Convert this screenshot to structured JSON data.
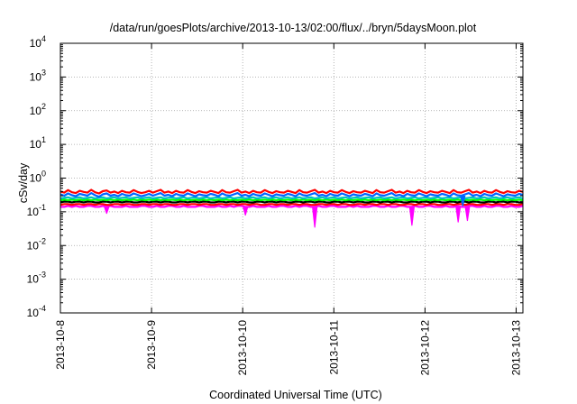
{
  "chart_data": {
    "type": "line",
    "title": "/data/run/goesPlots/archive/2013-10-13/02:00/flux/../bryn/5daysMoon.plot",
    "xlabel": "Coordinated Universal Time (UTC)",
    "ylabel": "cSv/day",
    "yscale": "log",
    "ylim": [
      0.0001,
      10000
    ],
    "yticks": [
      {
        "base": "10",
        "exp": "-4"
      },
      {
        "base": "10",
        "exp": "-3"
      },
      {
        "base": "10",
        "exp": "-2"
      },
      {
        "base": "10",
        "exp": "-1"
      },
      {
        "base": "10",
        "exp": "0"
      },
      {
        "base": "10",
        "exp": "1"
      },
      {
        "base": "10",
        "exp": "2"
      },
      {
        "base": "10",
        "exp": "3"
      },
      {
        "base": "10",
        "exp": "4"
      }
    ],
    "xlim": [
      "2013-10-08",
      "2013-10-13 02:00"
    ],
    "xticks": [
      "2013-10-8",
      "2013-10-9",
      "2013-10-10",
      "2013-10-11",
      "2013-10-12",
      "2013-10-13"
    ],
    "grid": true,
    "series": [
      {
        "color": "#ff00ff",
        "values": [
          0.14,
          0.14,
          0.15,
          0.14,
          0.15,
          0.14,
          0.14,
          0.15,
          0.15,
          0.14,
          0.14,
          0.15,
          0.14,
          0.15,
          0.14,
          0.14,
          0.14,
          0.15,
          0.14,
          0.14,
          0.14,
          0.15,
          0.15,
          0.14,
          0.14,
          0.15,
          0.14,
          0.14,
          0.15,
          0.15,
          0.14,
          0.14,
          0.15,
          0.14,
          0.14,
          0.14,
          0.15,
          0.15,
          0.14,
          0.14,
          0.14,
          0.15,
          0.14,
          0.14,
          0.15,
          0.14,
          0.15,
          0.15,
          0.14,
          0.14,
          0.15,
          0.14,
          0.14,
          0.14,
          0.15,
          0.14,
          0.14,
          0.15,
          0.15,
          0.14,
          0.14,
          0.15,
          0.14,
          0.15,
          0.15,
          0.14,
          0.14,
          0.15,
          0.14,
          0.14,
          0.15,
          0.15,
          0.14,
          0.14,
          0.14,
          0.15,
          0.14,
          0.15,
          0.14,
          0.14,
          0.14,
          0.15,
          0.15,
          0.14,
          0.14,
          0.15,
          0.14,
          0.14,
          0.15,
          0.15,
          0.14,
          0.14,
          0.15,
          0.14,
          0.14,
          0.15,
          0.15,
          0.14,
          0.14,
          0.14,
          0.15,
          0.14,
          0.14,
          0.15,
          0.14,
          0.14,
          0.15,
          0.15,
          0.14,
          0.14,
          0.15,
          0.14,
          0.14,
          0.15,
          0.15,
          0.14,
          0.14,
          0.15,
          0.14,
          0.14,
          0.15
        ]
      },
      {
        "color": "#ff0000",
        "values": [
          0.16,
          0.17,
          0.17,
          0.16,
          0.17,
          0.17,
          0.16,
          0.17,
          0.17,
          0.16,
          0.17,
          0.17,
          0.16,
          0.16,
          0.17,
          0.17,
          0.16,
          0.17,
          0.17,
          0.16,
          0.16,
          0.17,
          0.17,
          0.16,
          0.17,
          0.17,
          0.16,
          0.17,
          0.17,
          0.16,
          0.16,
          0.17,
          0.17,
          0.16,
          0.17,
          0.17,
          0.16,
          0.17,
          0.17,
          0.16,
          0.16,
          0.17,
          0.17,
          0.16,
          0.17,
          0.17,
          0.16,
          0.17,
          0.17,
          0.16,
          0.17,
          0.17,
          0.16,
          0.16,
          0.17,
          0.17,
          0.16,
          0.17,
          0.17,
          0.16,
          0.17,
          0.17,
          0.16,
          0.17,
          0.17,
          0.16,
          0.16,
          0.17,
          0.17,
          0.16,
          0.17,
          0.17,
          0.16,
          0.17,
          0.17,
          0.16,
          0.16,
          0.17,
          0.17,
          0.16,
          0.17,
          0.17,
          0.16,
          0.17,
          0.17,
          0.16,
          0.17,
          0.17,
          0.16,
          0.16,
          0.17,
          0.17,
          0.16,
          0.17,
          0.17,
          0.16,
          0.17,
          0.17,
          0.16,
          0.16,
          0.17,
          0.17,
          0.16,
          0.17,
          0.17,
          0.16,
          0.17,
          0.17,
          0.16,
          0.16,
          0.17,
          0.17,
          0.16,
          0.17,
          0.17,
          0.16,
          0.17,
          0.17,
          0.16,
          0.16,
          0.17
        ]
      },
      {
        "color": "#000000",
        "values": [
          0.19,
          0.2,
          0.2,
          0.19,
          0.2,
          0.2,
          0.19,
          0.2,
          0.2,
          0.19,
          0.19,
          0.2,
          0.2,
          0.19,
          0.2,
          0.2,
          0.19,
          0.2,
          0.2,
          0.19,
          0.19,
          0.2,
          0.2,
          0.19,
          0.2,
          0.2,
          0.19,
          0.2,
          0.2,
          0.19,
          0.19,
          0.2,
          0.2,
          0.19,
          0.2,
          0.2,
          0.19,
          0.2,
          0.2,
          0.19,
          0.19,
          0.2,
          0.2,
          0.19,
          0.2,
          0.2,
          0.19,
          0.2,
          0.2,
          0.19,
          0.19,
          0.2,
          0.2,
          0.19,
          0.2,
          0.2,
          0.19,
          0.2,
          0.2,
          0.19,
          0.19,
          0.2,
          0.2,
          0.19,
          0.2,
          0.2,
          0.19,
          0.2,
          0.2,
          0.19,
          0.19,
          0.2,
          0.2,
          0.19,
          0.2,
          0.2,
          0.19,
          0.2,
          0.2,
          0.19,
          0.19,
          0.2,
          0.2,
          0.19,
          0.2,
          0.2,
          0.19,
          0.2,
          0.2,
          0.19,
          0.19,
          0.2,
          0.2,
          0.19,
          0.2,
          0.2,
          0.19,
          0.2,
          0.2,
          0.19,
          0.19,
          0.2,
          0.2,
          0.19,
          0.2,
          0.2,
          0.19,
          0.2,
          0.2,
          0.19,
          0.19,
          0.2,
          0.2,
          0.19,
          0.2,
          0.2,
          0.19,
          0.2,
          0.2,
          0.19,
          0.19
        ]
      },
      {
        "color": "#00ff00",
        "values": [
          0.22,
          0.23,
          0.22,
          0.23,
          0.22,
          0.23,
          0.22,
          0.23,
          0.22,
          0.23,
          0.22,
          0.23,
          0.22,
          0.23,
          0.22,
          0.23,
          0.22,
          0.23,
          0.22,
          0.23,
          0.22,
          0.23,
          0.22,
          0.23,
          0.22,
          0.23,
          0.22,
          0.23,
          0.22,
          0.23,
          0.22,
          0.23,
          0.22,
          0.23,
          0.22,
          0.23,
          0.22,
          0.23,
          0.22,
          0.23,
          0.22,
          0.23,
          0.22,
          0.23,
          0.22,
          0.23,
          0.22,
          0.23,
          0.22,
          0.23,
          0.22,
          0.23,
          0.22,
          0.23,
          0.22,
          0.23,
          0.22,
          0.23,
          0.22,
          0.23,
          0.22,
          0.23,
          0.22,
          0.23,
          0.22,
          0.23,
          0.22,
          0.23,
          0.22,
          0.23,
          0.22,
          0.23,
          0.22,
          0.23,
          0.22,
          0.23,
          0.22,
          0.23,
          0.22,
          0.23,
          0.22,
          0.23,
          0.22,
          0.23,
          0.22,
          0.23,
          0.22,
          0.23,
          0.22,
          0.23,
          0.22,
          0.23,
          0.22,
          0.23,
          0.22,
          0.23,
          0.22,
          0.23,
          0.22,
          0.23,
          0.22,
          0.23,
          0.22,
          0.23,
          0.22,
          0.23,
          0.22,
          0.23,
          0.22,
          0.23,
          0.22,
          0.23,
          0.22,
          0.23,
          0.22,
          0.23,
          0.22,
          0.23,
          0.22,
          0.23,
          0.22
        ]
      },
      {
        "color": "#00c0c0",
        "values": [
          0.25,
          0.26,
          0.27,
          0.25,
          0.26,
          0.27,
          0.25,
          0.26,
          0.27,
          0.25,
          0.26,
          0.27,
          0.25,
          0.26,
          0.27,
          0.25,
          0.26,
          0.27,
          0.25,
          0.26,
          0.27,
          0.25,
          0.26,
          0.27,
          0.25,
          0.26,
          0.27,
          0.25,
          0.26,
          0.27,
          0.25,
          0.26,
          0.27,
          0.25,
          0.26,
          0.27,
          0.25,
          0.26,
          0.27,
          0.25,
          0.26,
          0.27,
          0.25,
          0.26,
          0.27,
          0.25,
          0.26,
          0.27,
          0.25,
          0.26,
          0.27,
          0.25,
          0.26,
          0.27,
          0.25,
          0.26,
          0.27,
          0.25,
          0.26,
          0.27,
          0.25,
          0.26,
          0.27,
          0.25,
          0.26,
          0.27,
          0.25,
          0.26,
          0.27,
          0.25,
          0.26,
          0.27,
          0.25,
          0.26,
          0.27,
          0.25,
          0.26,
          0.27,
          0.25,
          0.26,
          0.27,
          0.25,
          0.26,
          0.27,
          0.25,
          0.26,
          0.27,
          0.25,
          0.26,
          0.27,
          0.25,
          0.26,
          0.27,
          0.25,
          0.26,
          0.27,
          0.25,
          0.26,
          0.27,
          0.25,
          0.26,
          0.27,
          0.25,
          0.26,
          0.27,
          0.25,
          0.26,
          0.27,
          0.25,
          0.26,
          0.27,
          0.25,
          0.26,
          0.27,
          0.25,
          0.26,
          0.27,
          0.25,
          0.26,
          0.27,
          0.25
        ]
      },
      {
        "color": "#0066ff",
        "values": [
          0.33,
          0.3,
          0.35,
          0.31,
          0.29,
          0.34,
          0.32,
          0.3,
          0.36,
          0.31,
          0.28,
          0.33,
          0.35,
          0.3,
          0.32,
          0.29,
          0.34,
          0.31,
          0.3,
          0.35,
          0.32,
          0.29,
          0.31,
          0.34,
          0.3,
          0.33,
          0.36,
          0.3,
          0.32,
          0.29,
          0.34,
          0.31,
          0.3,
          0.35,
          0.32,
          0.29,
          0.33,
          0.31,
          0.3,
          0.34,
          0.32,
          0.29,
          0.35,
          0.31,
          0.3,
          0.33,
          0.36,
          0.3,
          0.32,
          0.29,
          0.34,
          0.31,
          0.3,
          0.35,
          0.32,
          0.29,
          0.33,
          0.31,
          0.3,
          0.34,
          0.32,
          0.29,
          0.35,
          0.31,
          0.3,
          0.33,
          0.36,
          0.3,
          0.32,
          0.29,
          0.34,
          0.31,
          0.3,
          0.35,
          0.32,
          0.29,
          0.33,
          0.31,
          0.3,
          0.34,
          0.32,
          0.29,
          0.35,
          0.31,
          0.3,
          0.33,
          0.36,
          0.3,
          0.32,
          0.29,
          0.34,
          0.31,
          0.3,
          0.35,
          0.32,
          0.29,
          0.33,
          0.31,
          0.3,
          0.34,
          0.32,
          0.29,
          0.35,
          0.31,
          0.3,
          0.33,
          0.36,
          0.3,
          0.32,
          0.29,
          0.34,
          0.31,
          0.3,
          0.35,
          0.32,
          0.29,
          0.33,
          0.31,
          0.3,
          0.34,
          0.32
        ]
      },
      {
        "color": "#ff0000",
        "values": [
          0.4,
          0.37,
          0.44,
          0.38,
          0.36,
          0.42,
          0.39,
          0.37,
          0.45,
          0.38,
          0.35,
          0.41,
          0.43,
          0.37,
          0.4,
          0.36,
          0.42,
          0.38,
          0.37,
          0.44,
          0.39,
          0.36,
          0.38,
          0.42,
          0.37,
          0.41,
          0.45,
          0.37,
          0.4,
          0.36,
          0.42,
          0.38,
          0.37,
          0.44,
          0.39,
          0.36,
          0.41,
          0.38,
          0.37,
          0.42,
          0.39,
          0.36,
          0.44,
          0.38,
          0.37,
          0.41,
          0.45,
          0.37,
          0.4,
          0.36,
          0.42,
          0.38,
          0.37,
          0.44,
          0.39,
          0.36,
          0.41,
          0.38,
          0.37,
          0.42,
          0.39,
          0.36,
          0.44,
          0.38,
          0.37,
          0.41,
          0.45,
          0.37,
          0.4,
          0.36,
          0.42,
          0.38,
          0.37,
          0.44,
          0.39,
          0.36,
          0.41,
          0.38,
          0.37,
          0.42,
          0.39,
          0.36,
          0.44,
          0.38,
          0.37,
          0.41,
          0.45,
          0.37,
          0.4,
          0.36,
          0.42,
          0.38,
          0.37,
          0.44,
          0.39,
          0.36,
          0.41,
          0.38,
          0.37,
          0.42,
          0.39,
          0.36,
          0.44,
          0.38,
          0.37,
          0.41,
          0.45,
          0.37,
          0.4,
          0.36,
          0.42,
          0.38,
          0.37,
          0.44,
          0.39,
          0.36,
          0.41,
          0.38,
          0.37,
          0.42,
          0.39
        ]
      }
    ],
    "dips": [
      {
        "series": 0,
        "x": 0.1,
        "value": 0.09
      },
      {
        "series": 0,
        "x": 0.4,
        "value": 0.08
      },
      {
        "series": 0,
        "x": 0.55,
        "value": 0.035
      },
      {
        "series": 0,
        "x": 0.76,
        "value": 0.04
      },
      {
        "series": 0,
        "x": 0.86,
        "value": 0.05
      },
      {
        "series": 0,
        "x": 0.88,
        "value": 0.055
      },
      {
        "series": 5,
        "x": 0.87,
        "value": 0.15
      }
    ]
  }
}
